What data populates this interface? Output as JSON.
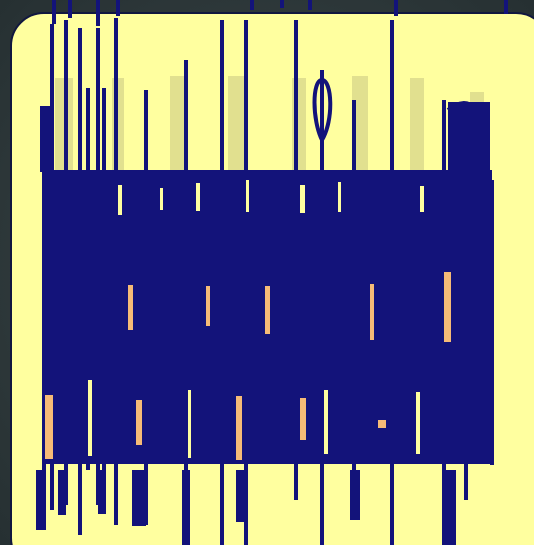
{
  "colors": {
    "background": "#2f3a3c",
    "panel": "#ffff9f",
    "ink": "#13137a",
    "highlight": "#f6bb77",
    "shadow": "#d9d98a"
  },
  "content": {
    "description_text": ""
  }
}
